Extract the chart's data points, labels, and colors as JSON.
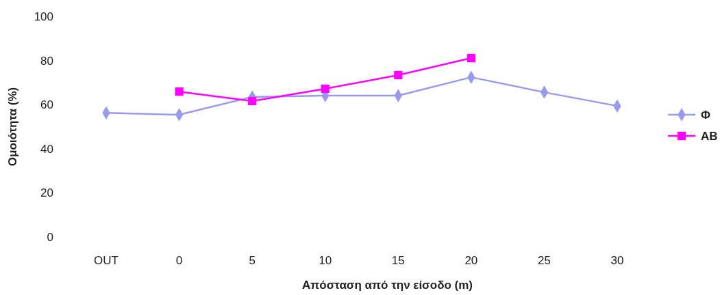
{
  "chart_data": {
    "type": "line",
    "xlabel": "Απόσταση από την είσοδο (m)",
    "ylabel": "Ομοιότητα (%)",
    "categories": [
      "OUT",
      "0",
      "5",
      "10",
      "15",
      "20",
      "25",
      "30"
    ],
    "ylim": [
      0,
      100
    ],
    "yticks": [
      0,
      20,
      40,
      60,
      80,
      100
    ],
    "grid": false,
    "legend": "right",
    "series": [
      {
        "name": "Φ",
        "color": "#9999ee",
        "marker": "diamond",
        "values": [
          56.3,
          55.4,
          63.5,
          64.1,
          64.1,
          72.4,
          65.6,
          59.4
        ]
      },
      {
        "name": "AB",
        "color": "#ff00ff",
        "marker": "square",
        "values": [
          null,
          65.9,
          61.6,
          67.2,
          73.4,
          81.1,
          null,
          null
        ]
      }
    ]
  }
}
